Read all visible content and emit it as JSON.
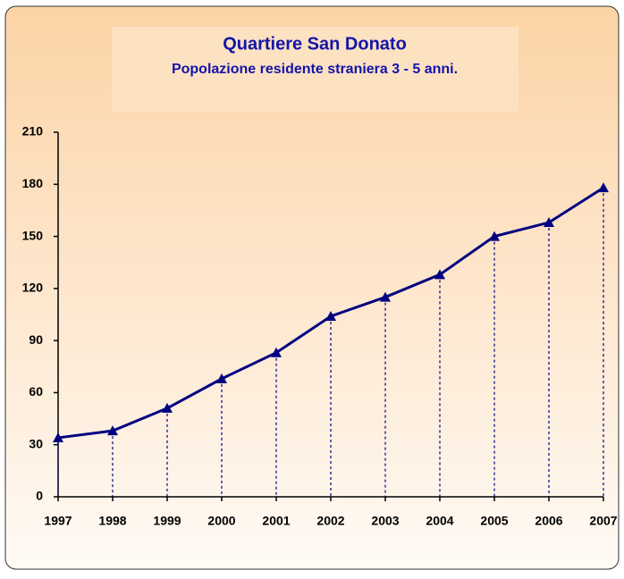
{
  "chart_data": {
    "type": "line",
    "title": "Quartiere San Donato",
    "subtitle": "Popolazione residente straniera 3 - 5 anni.",
    "categories": [
      "1997",
      "1998",
      "1999",
      "2000",
      "2001",
      "2002",
      "2003",
      "2004",
      "2005",
      "2006",
      "2007"
    ],
    "series": [
      {
        "name": "Popolazione",
        "color": "#000080",
        "values": [
          34,
          38,
          51,
          68,
          83,
          104,
          115,
          128,
          150,
          158,
          178
        ]
      }
    ],
    "ylim": [
      0,
      210
    ],
    "yticks": [
      0,
      30,
      60,
      90,
      120,
      150,
      180,
      210
    ],
    "drop_lines": true
  }
}
